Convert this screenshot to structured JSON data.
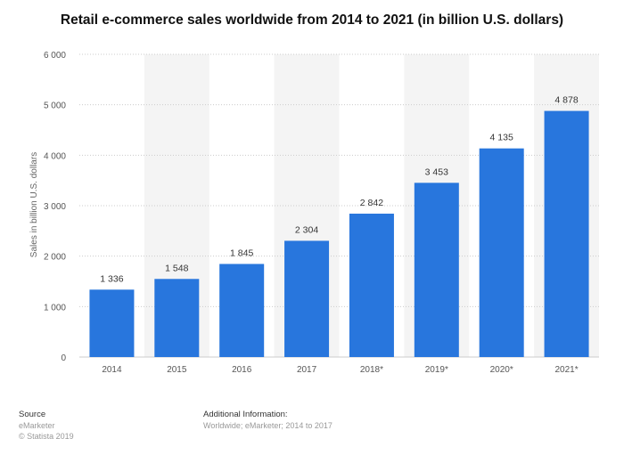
{
  "chart_data": {
    "type": "bar",
    "title": "Retail e-commerce sales worldwide from 2014 to 2021 (in billion U.S. dollars)",
    "xlabel": "",
    "ylabel": "Sales in billion U.S. dollars",
    "categories": [
      "2014",
      "2015",
      "2016",
      "2017",
      "2018*",
      "2019*",
      "2020*",
      "2021*"
    ],
    "values": [
      1336,
      1548,
      1845,
      2304,
      2842,
      3453,
      4135,
      4878
    ],
    "data_labels": [
      "1 336",
      "1 548",
      "1 845",
      "2 304",
      "2 842",
      "3 453",
      "4 135",
      "4 878"
    ],
    "ylim": [
      0,
      6000
    ],
    "yticks": [
      0,
      1000,
      2000,
      3000,
      4000,
      5000,
      6000
    ],
    "ytick_labels": [
      "0",
      "1 000",
      "2 000",
      "3 000",
      "4 000",
      "5 000",
      "6 000"
    ],
    "grid": true,
    "legend": "none",
    "colors": {
      "bar": "#2876dd",
      "band": "#f4f4f4",
      "grid": "#cccccc"
    }
  },
  "footer": {
    "source_heading": "Source",
    "source_name": "eMarketer",
    "copyright": "© Statista 2019",
    "info_heading": "Additional Information:",
    "info_text": "Worldwide; eMarketer; 2014 to 2017"
  }
}
